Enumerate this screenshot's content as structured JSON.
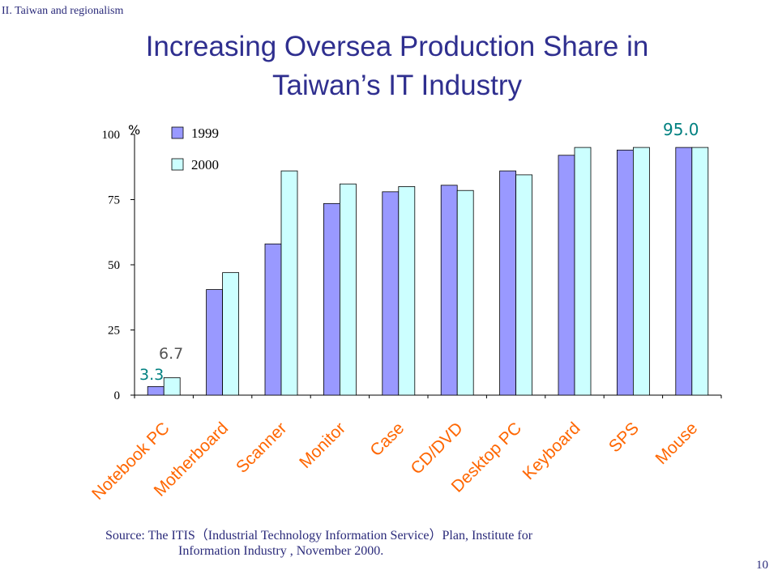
{
  "section_label": "II. Taiwan and regionalism",
  "title_line1": "Increasing Oversea Production Share in",
  "title_line2": "Taiwan’s IT Industry",
  "source_line1": "Source: The ITIS（Industrial Technology Information Service）Plan, Institute for",
  "source_line2": "Information Industry , November 2000.",
  "page_number": "10",
  "colors": {
    "series_1999": "#9999ff",
    "series_2000": "#ccffff",
    "category_label": "#ff6600",
    "annotation": "#008080"
  },
  "chart_data": {
    "type": "bar",
    "ylabel": "%",
    "ylim": [
      0,
      100
    ],
    "yticks": [
      "0",
      "25",
      "50",
      "75",
      "100"
    ],
    "legend_position": "top-left",
    "grid": false,
    "categories": [
      "Notebook PC",
      "Motherboard",
      "Scanner",
      "Monitor",
      "Case",
      "CD/DVD",
      "Desktop PC",
      "Keyboard",
      "SPS",
      "Mouse"
    ],
    "series": [
      {
        "name": "1999",
        "values": [
          3.3,
          40.5,
          58.0,
          73.5,
          78.0,
          80.5,
          86.0,
          92.0,
          94.0,
          95.0
        ]
      },
      {
        "name": "2000",
        "values": [
          6.7,
          47.0,
          86.0,
          81.0,
          80.0,
          78.5,
          84.5,
          95.0,
          95.0,
          95.0
        ]
      }
    ],
    "annotations": [
      "3.3",
      "6.7",
      "95.0"
    ]
  }
}
